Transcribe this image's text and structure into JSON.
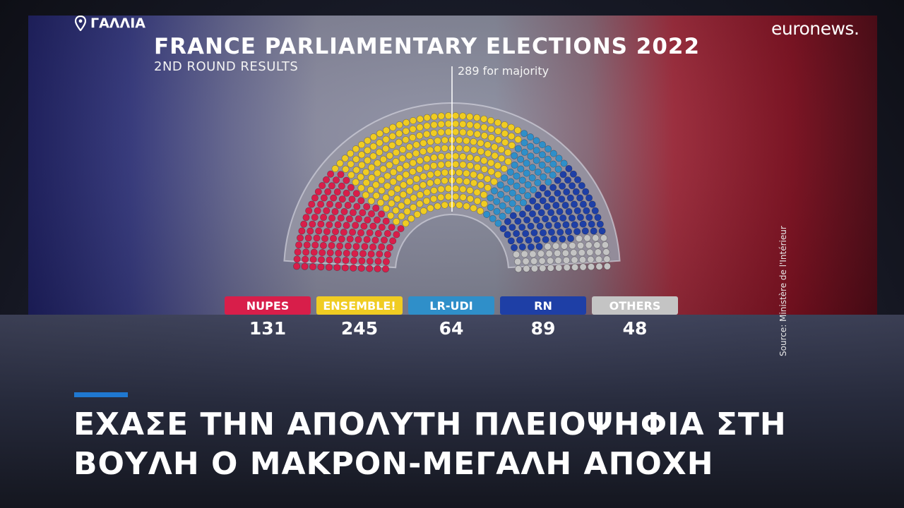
{
  "location": "ΓΑΛΛΙΑ",
  "logo": "euronews.",
  "headline": {
    "line1": "ΕΧΑΣΕ ΤΗΝ ΑΠΟΛΥΤΗ ΠΛΕΙΟΨΗΦΙΑ ΣΤΗ",
    "line2": "ΒΟΥΛΗ Ο ΜΑΚΡΟΝ-ΜΕΓΑΛΗ ΑΠΟΧΗ"
  },
  "source": "Source: Ministère de l'Intérieur",
  "colors": {
    "accent_bar": "#1f78d1"
  },
  "chart_data": {
    "type": "hemicycle",
    "title": "FRANCE PARLIAMENTARY ELECTIONS 2022",
    "subtitle": "2ND ROUND RESULTS",
    "majority_label": "289 for majority",
    "majority": 289,
    "parties": [
      {
        "name": "NUPES",
        "seats": 131,
        "color": "#d81e4a"
      },
      {
        "name": "ENSEMBLE!",
        "seats": 245,
        "color": "#f0cc22"
      },
      {
        "name": "LR-UDI",
        "seats": 64,
        "color": "#2f8fc9"
      },
      {
        "name": "RN",
        "seats": 89,
        "color": "#1e3fa6"
      },
      {
        "name": "OTHERS",
        "seats": 48,
        "color": "#c4c4c4"
      }
    ]
  }
}
